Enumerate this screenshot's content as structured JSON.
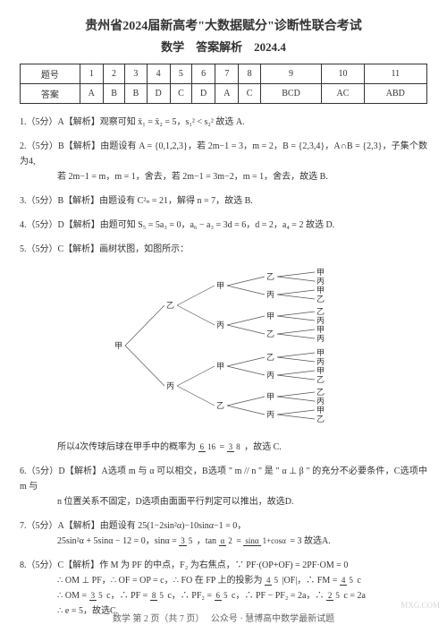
{
  "header": {
    "title": "贵州省2024届新高考\"大数据赋分\"诊断性联合考试",
    "subtitle": "数学　答案解析　2024.4"
  },
  "table": {
    "row_labels": [
      "题号",
      "答案"
    ],
    "cols": [
      "1",
      "2",
      "3",
      "4",
      "5",
      "6",
      "7",
      "8",
      "9",
      "10",
      "11"
    ],
    "answers": [
      "A",
      "B",
      "B",
      "D",
      "C",
      "D",
      "A",
      "C",
      "BCD",
      "AC",
      "ABD"
    ]
  },
  "q1": {
    "head": "1.（5分）A【解析】观察可知 x̄₁ = x̄₂ = 5，s₁² < s₂² 故选 A."
  },
  "q2": {
    "head": "2.（5分）B【解析】由题设有 A = {0,1,2,3}，若 2m−1 = 3，m = 2，B = {2,3,4}，A∩B = {2,3}，子集个数为4,",
    "cont": "若 2m−1 = m，m = 1，舍去，若 2m−1 = 3m−2，m = 1，舍去，故选 B."
  },
  "q3": {
    "head": "3.（5分）B【解析】由题设有 C²ₙ = 21，解得 n = 7，故选 B."
  },
  "q4": {
    "head": "4.（5分）D【解析】由题可知 S₅ = 5a₃ = 0，a₆ − a₃ = 3d = 6，d = 2，a₄ = 2 故选 D."
  },
  "q5": {
    "head": "5.（5分）C【解析】画树状图，如图所示：",
    "tail_a": "所以4次传球后球在甲手中的概率为",
    "frac_t1": "6",
    "frac_b1": "16",
    "frac_t2": "3",
    "frac_b2": "8",
    "tail_b": "，故选 C."
  },
  "q6": {
    "head": "6.（5分）D【解析】A选项 m 与 α 可以相交，B选项 \" m // n \" 是 \" α ⊥ β \" 的充分不必要条件，C选项中 m 与",
    "cont": "n 位置关系不固定，D选项由面面平行判定可以推出，故选D."
  },
  "q7": {
    "head": "7.（5分）A【解析】由题设有 25(1−2sin²α)−10sinα−1 = 0，",
    "line2a": "25sin²α + 5sinα − 12 = 0，sinα = ",
    "f1t": "3",
    "f1b": "5",
    "line2b": "，tan",
    "f2t": "α",
    "f2b": "2",
    "line2c": " = ",
    "f3t": "sinα",
    "f3b": "1+cosα",
    "line2d": " = 3 故选A."
  },
  "q8": {
    "head": "8.（5分）C【解析】作 M 为 PF 的中点，F₂ 为右焦点，∵ PF·(OP+OF) = 2PF·OM = 0",
    "l2a": "∴ OM ⊥ PF，∴ OF = OP = c，∴ FO 在 FP 上的投影为 ",
    "f1t": "4",
    "f1b": "5",
    "l2b": "|OF|，∴ FM = ",
    "f2t": "4",
    "f2b": "5",
    "l2c": "c",
    "l3a": "∴ OM = ",
    "f3t": "3",
    "f3b": "5",
    "l3b": "c，∴ PF = ",
    "f4t": "8",
    "f4b": "5",
    "l3c": "c，∴ PF₂ = ",
    "f5t": "6",
    "f5b": "5",
    "l3d": "c，∴ PF − PF₂ = 2a，∴ ",
    "f6t": "2",
    "f6b": "5",
    "l3e": "c = 2a",
    "l4": "∴ e = 5，故选C."
  },
  "tree": {
    "labels": {
      "jia": "甲",
      "yi": "乙",
      "bing": "丙"
    },
    "stroke": "#555",
    "stroke_w": 0.7,
    "font_size": 9
  },
  "footer": {
    "page": "数学 第 2 页（共 7 页）",
    "wx": "公众号 · 慧博高中数学最新试题",
    "wm": "MXG.COM"
  }
}
